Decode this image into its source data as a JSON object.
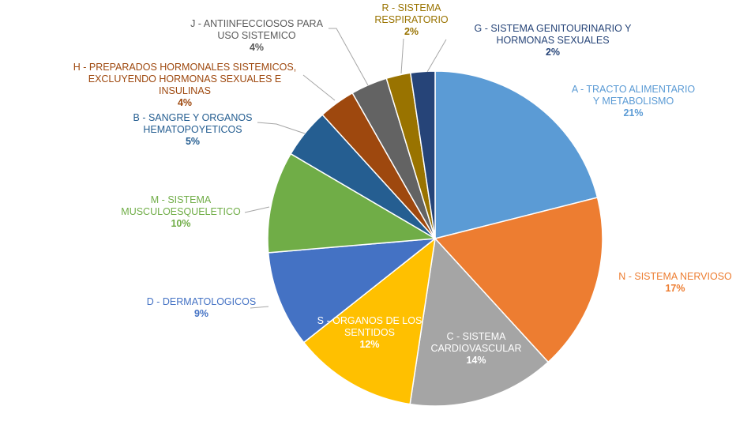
{
  "chart_data": {
    "type": "pie",
    "title": "",
    "start_angle_deg": 0,
    "direction": "clockwise",
    "slice_border_color": "#ffffff",
    "slices": [
      {
        "code": "A",
        "label_lines": [
          "A - TRACTO ALIMENTARIO",
          "Y METABOLISMO"
        ],
        "percent_label": "21%",
        "value": 21.5,
        "color": "#5B9BD5",
        "label_color": "#5B9BD5"
      },
      {
        "code": "N",
        "label_lines": [
          "N - SISTEMA NERVIOSO"
        ],
        "percent_label": "17%",
        "value": 17.5,
        "color": "#ED7D31",
        "label_color": "#ED7D31"
      },
      {
        "code": "C",
        "label_lines": [
          "C - SISTEMA",
          "CARDIOVASCULAR"
        ],
        "percent_label": "14%",
        "value": 14.5,
        "color": "#A5A5A5",
        "label_color": "#FFFFFF"
      },
      {
        "code": "S",
        "label_lines": [
          "S - ORGANOS DE LOS",
          "SENTIDOS"
        ],
        "percent_label": "12%",
        "value": 12.2,
        "color": "#FFC000",
        "label_color": "#FFFFFF"
      },
      {
        "code": "D",
        "label_lines": [
          "D - DERMATOLOGICOS"
        ],
        "percent_label": "9%",
        "value": 9.5,
        "color": "#4472C4",
        "label_color": "#4472C4"
      },
      {
        "code": "M",
        "label_lines": [
          "M - SISTEMA",
          "MUSCULOESQUELETICO"
        ],
        "percent_label": "10%",
        "value": 10.0,
        "color": "#70AD47",
        "label_color": "#70AD47"
      },
      {
        "code": "B",
        "label_lines": [
          "B - SANGRE Y ORGANOS",
          "HEMATOPOYETICOS"
        ],
        "percent_label": "5%",
        "value": 4.9,
        "color": "#255E91",
        "label_color": "#255E91"
      },
      {
        "code": "H",
        "label_lines": [
          "H - PREPARADOS HORMONALES SISTEMICOS,",
          "EXCLUYENDO HORMONAS SEXUALES E",
          "INSULINAS"
        ],
        "percent_label": "4%",
        "value": 3.6,
        "color": "#9E480E",
        "label_color": "#9E480E"
      },
      {
        "code": "J",
        "label_lines": [
          "J - ANTIINFECCIOSOS PARA",
          "USO SISTEMICO"
        ],
        "percent_label": "4%",
        "value": 3.6,
        "color": "#636363",
        "label_color": "#595959"
      },
      {
        "code": "R",
        "label_lines": [
          "R - SISTEMA",
          "RESPIRATORIO"
        ],
        "percent_label": "2%",
        "value": 2.4,
        "color": "#997300",
        "label_color": "#997300"
      },
      {
        "code": "G",
        "label_lines": [
          "G - SISTEMA GENITOURINARIO Y",
          "HORMONAS SEXUALES"
        ],
        "percent_label": "2%",
        "value": 2.4,
        "color": "#264478",
        "label_color": "#264478"
      }
    ]
  }
}
